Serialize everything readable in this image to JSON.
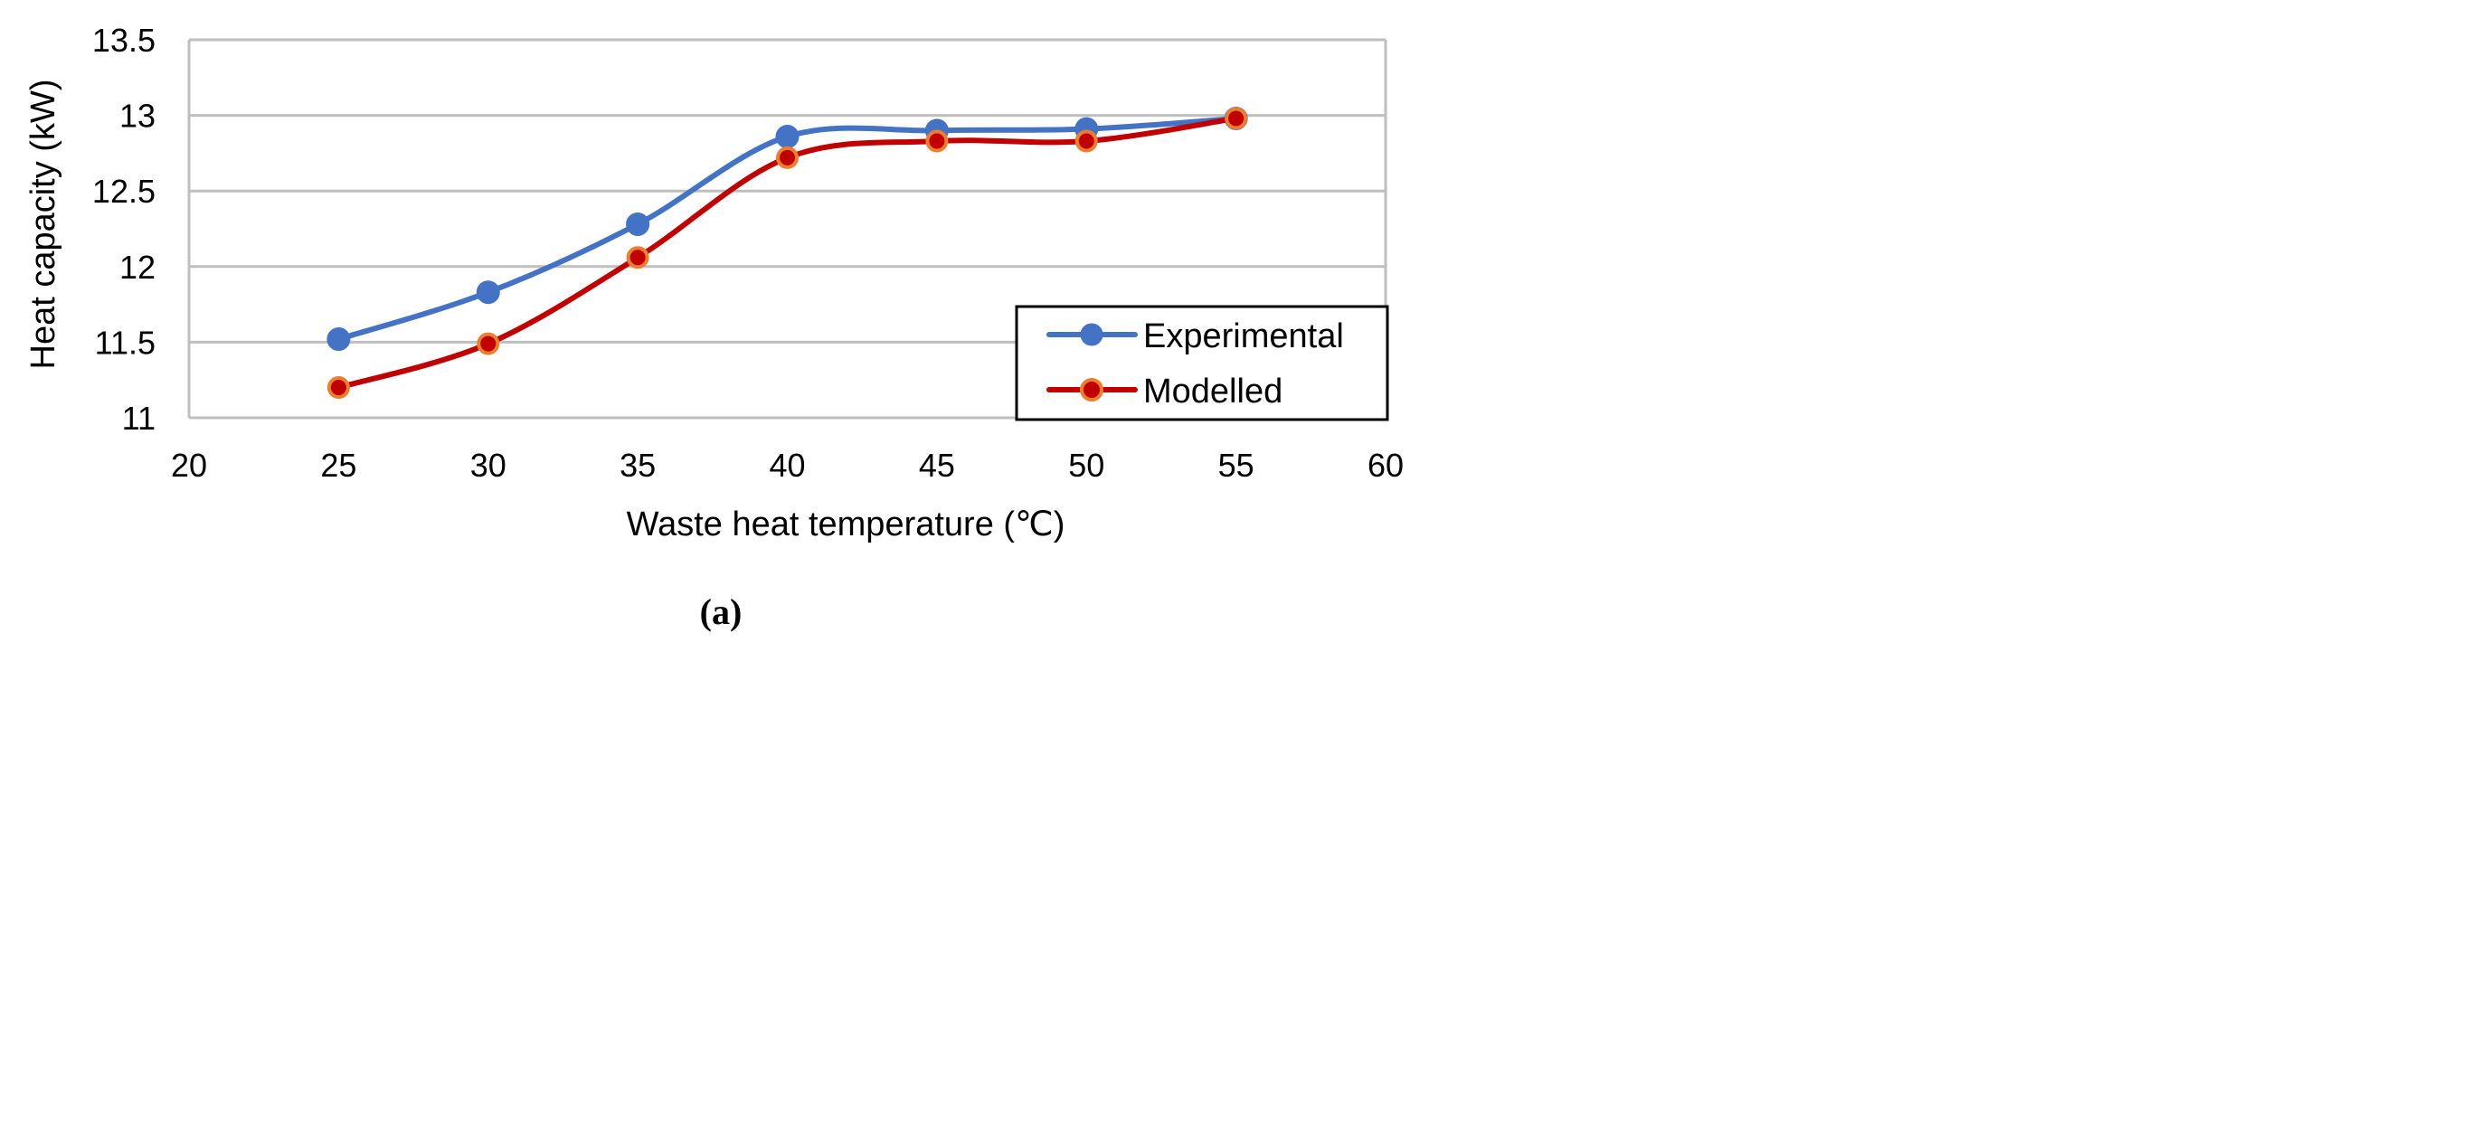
{
  "chart_data": {
    "type": "line",
    "title": "",
    "xlabel": "Waste heat temperature (℃)",
    "ylabel": "Heat capacity (kW)",
    "xlim": [
      20,
      60
    ],
    "ylim": [
      11,
      13.5
    ],
    "xticks": [
      20,
      25,
      30,
      35,
      40,
      45,
      50,
      55,
      60
    ],
    "yticks": [
      11,
      11.5,
      12,
      12.5,
      13,
      13.5
    ],
    "x_tick_labels": [
      "20",
      "25",
      "30",
      "35",
      "40",
      "45",
      "50",
      "55",
      "60"
    ],
    "y_tick_labels": [
      "11",
      "11.5",
      "12",
      "12.5",
      "13",
      "13.5"
    ],
    "grid": "horizontal",
    "legend_position": "bottom-right",
    "smooth": true,
    "series": [
      {
        "name": "Experimental",
        "x": [
          25,
          30,
          35,
          40,
          45,
          50,
          55
        ],
        "values": [
          11.52,
          11.83,
          12.28,
          12.86,
          12.9,
          12.91,
          12.98
        ],
        "color": "#4472C4",
        "marker_fill": "#4472C4",
        "marker_edge": "#4472C4"
      },
      {
        "name": "Modelled",
        "x": [
          25,
          30,
          35,
          40,
          45,
          50,
          55
        ],
        "values": [
          11.2,
          11.49,
          12.06,
          12.72,
          12.83,
          12.83,
          12.98
        ],
        "color": "#C00000",
        "marker_fill": "#C00000",
        "marker_edge": "#ED7D31"
      }
    ]
  },
  "caption": "(a)"
}
